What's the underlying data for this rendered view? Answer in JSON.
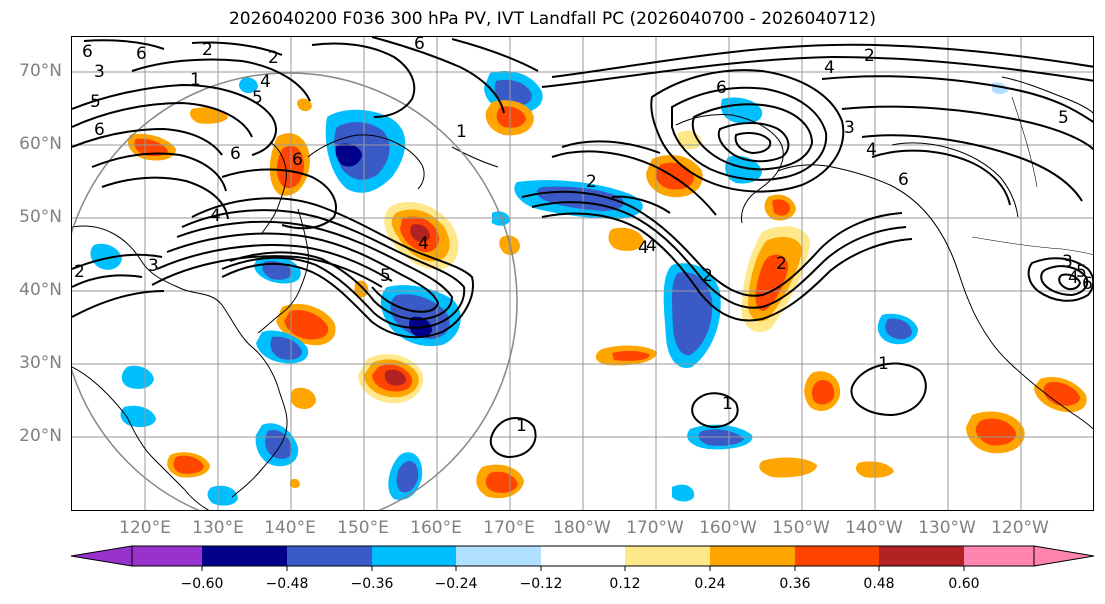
{
  "title": "2026040200 F036 300 hPa PV, IVT Landfall PC (2026040700 - 2026040712)",
  "lat_labels": [
    "70°N",
    "60°N",
    "50°N",
    "40°N",
    "30°N",
    "20°N"
  ],
  "lon_labels": [
    "120°E",
    "130°E",
    "140°E",
    "150°E",
    "160°E",
    "170°E",
    "180°W",
    "170°W",
    "160°W",
    "150°W",
    "140°W",
    "130°W",
    "120°W"
  ],
  "colorbar": {
    "ticks": [
      "−0.60",
      "−0.48",
      "−0.36",
      "−0.24",
      "−0.12",
      "0.12",
      "0.24",
      "0.36",
      "0.48",
      "0.60"
    ],
    "colors": [
      "#9932cc",
      "#00008b",
      "#3a5bc7",
      "#00bfff",
      "#b0e0ff",
      "#ffffff",
      "#ffe88a",
      "#ffa500",
      "#ff4500",
      "#b22222",
      "#ff85b0"
    ]
  },
  "contour_labels": [
    "1",
    "2",
    "6",
    "4",
    "2",
    "5",
    "6",
    "3",
    "6",
    "5",
    "2",
    "6",
    "6",
    "4",
    "6",
    "1",
    "2",
    "4",
    "6",
    "3",
    "4",
    "5",
    "6",
    "4",
    "5",
    "2",
    "4",
    "2",
    "3",
    "4",
    "1",
    "1",
    "1",
    "2",
    "3",
    "4",
    "5",
    "6"
  ]
}
